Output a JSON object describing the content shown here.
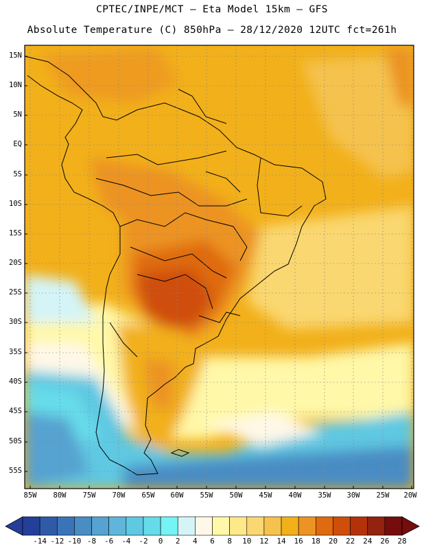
{
  "title": {
    "line1": "CPTEC/INPE/MCT –  Eta Model 15km – GFS",
    "line2": "Absolute Temperature (C) 850hPa – 28/12/2020 12UTC fct=261h"
  },
  "axes": {
    "lat_labels": [
      "15N",
      "10N",
      "5N",
      "EQ",
      "5S",
      "10S",
      "15S",
      "20S",
      "25S",
      "30S",
      "35S",
      "40S",
      "45S",
      "50S",
      "55S"
    ],
    "lon_labels": [
      "85W",
      "80W",
      "75W",
      "70W",
      "65W",
      "60W",
      "55W",
      "50W",
      "45W",
      "40W",
      "35W",
      "30W",
      "25W",
      "20W"
    ]
  },
  "colorbar": {
    "labels": [
      "-14",
      "-12",
      "-10",
      "-8",
      "-6",
      "-4",
      "-2",
      "0",
      "2",
      "4",
      "6",
      "8",
      "10",
      "12",
      "14",
      "16",
      "18",
      "20",
      "22",
      "24",
      "26",
      "28"
    ],
    "colors": [
      "#243f98",
      "#2f5aa8",
      "#3a74b8",
      "#4a8cc4",
      "#56a2d0",
      "#5fb6da",
      "#5fc8e2",
      "#66dcea",
      "#74f4f4",
      "#d4f4f8",
      "#fff8e8",
      "#fff8a8",
      "#fde88a",
      "#fad770",
      "#f5c24d",
      "#f2b01a",
      "#ec9324",
      "#e06a10",
      "#cf4e0a",
      "#b4320a",
      "#93220e",
      "#750d0d"
    ],
    "low_color": "#243f98",
    "high_color": "#750d0d"
  }
}
